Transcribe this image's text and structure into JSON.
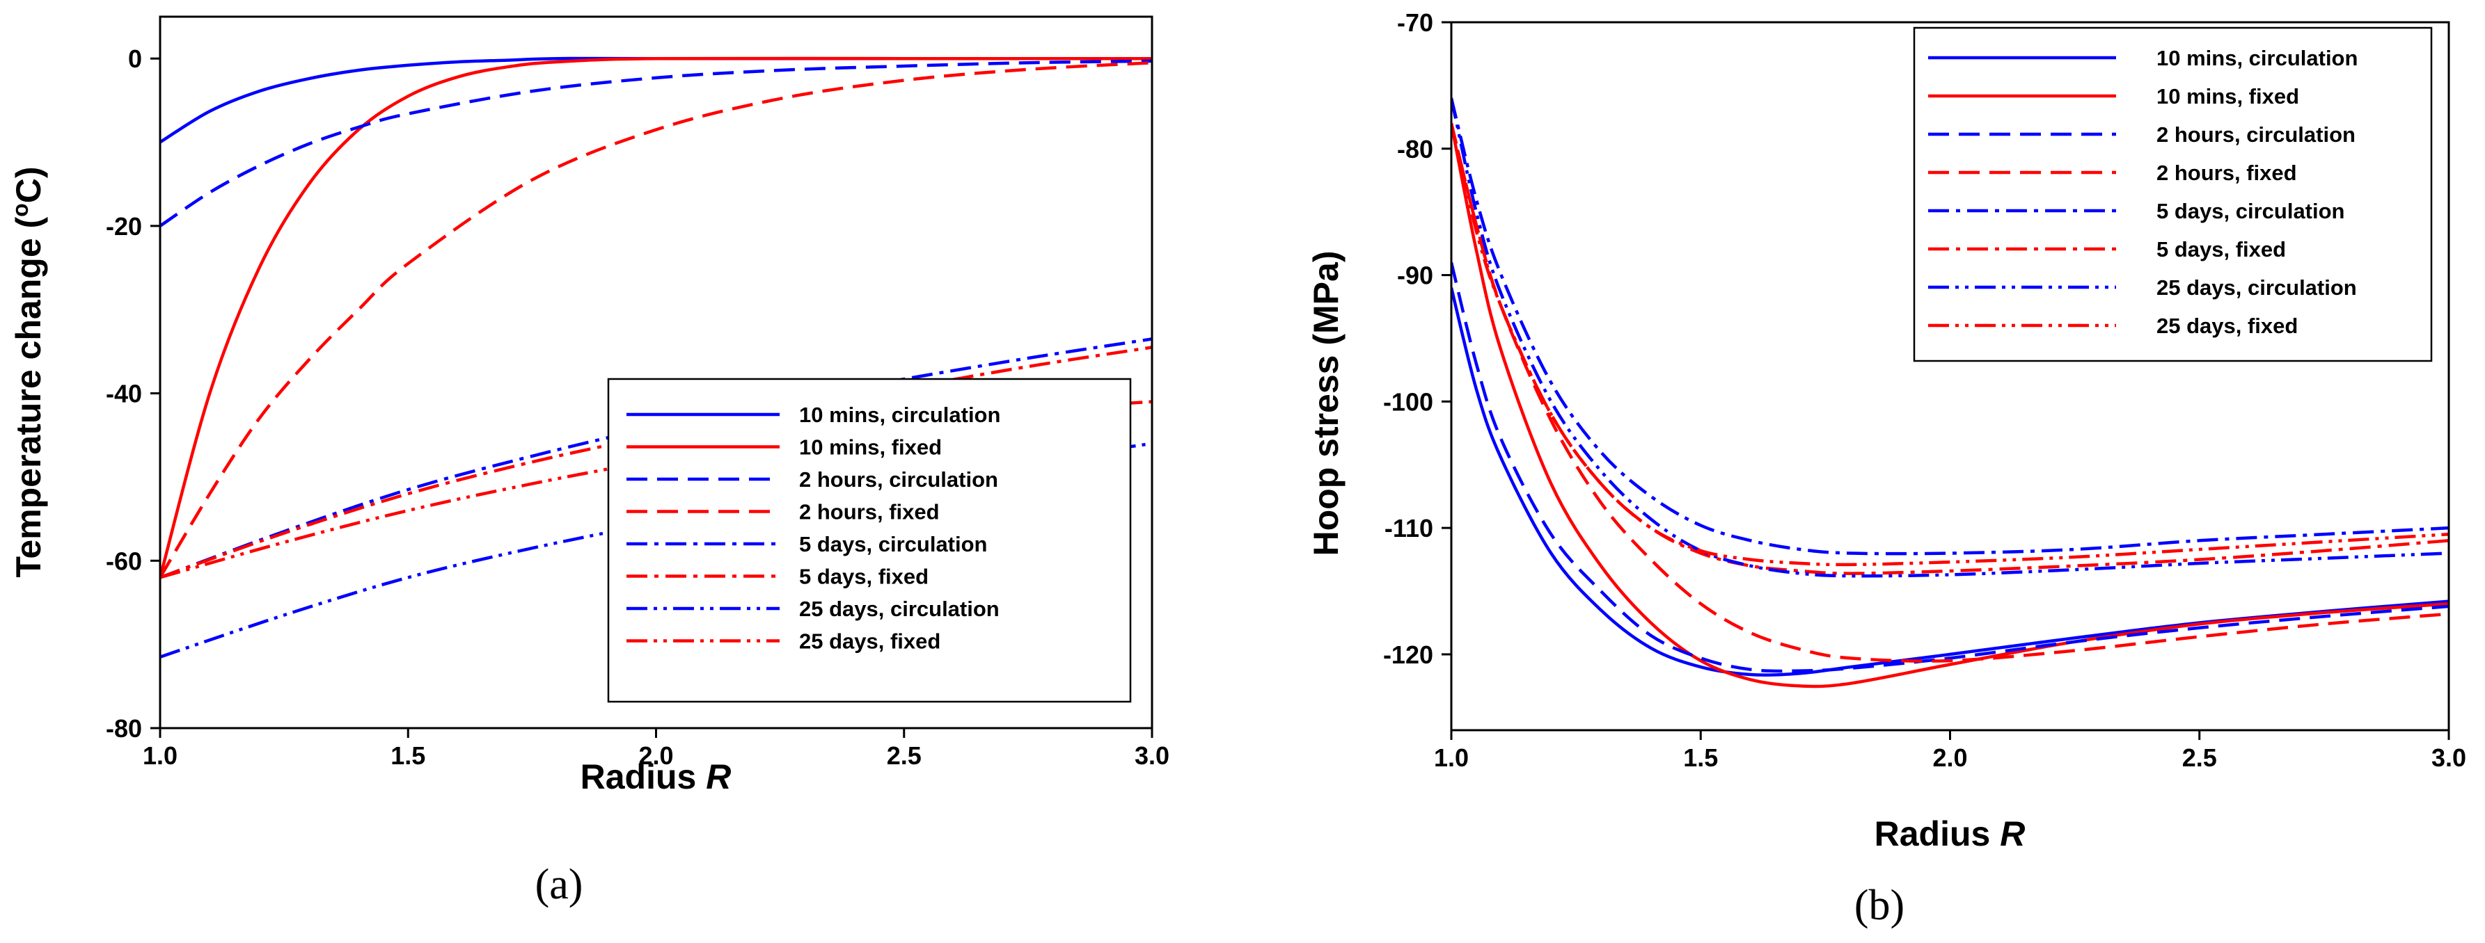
{
  "chart_data": [
    {
      "type": "line",
      "panel_label": "(a)",
      "xlabel": "Radius",
      "xlabel_italic": "R",
      "ylabel": "Temperature change (",
      "ylabel_sup": "o",
      "ylabel_end": "C)",
      "xlim": [
        1.0,
        3.0
      ],
      "ylim": [
        -80,
        5
      ],
      "xticks": [
        1.0,
        1.5,
        2.0,
        2.5,
        3.0
      ],
      "xtick_labels": [
        "1.0",
        "1.5",
        "2.0",
        "2.5",
        "3.0"
      ],
      "yticks": [
        0,
        -20,
        -40,
        -60,
        -80
      ],
      "ytick_labels": [
        "0",
        "-20",
        "-40",
        "-60",
        "-80"
      ],
      "legend_position": "center-right",
      "series": [
        {
          "name": "10 mins, circulation",
          "color": "#0000ff",
          "style": "solid",
          "x": [
            1.0,
            1.1,
            1.2,
            1.3,
            1.4,
            1.5,
            1.6,
            1.7,
            1.8,
            2.0,
            2.5,
            3.0
          ],
          "y": [
            -10,
            -6.3,
            -3.9,
            -2.4,
            -1.4,
            -0.8,
            -0.4,
            -0.2,
            0,
            0,
            0,
            0
          ]
        },
        {
          "name": "10 mins, fixed",
          "color": "#ff0000",
          "style": "solid",
          "x": [
            1.0,
            1.1,
            1.2,
            1.3,
            1.4,
            1.5,
            1.6,
            1.7,
            1.8,
            2.0,
            2.5,
            3.0
          ],
          "y": [
            -62,
            -40,
            -25,
            -15,
            -8.5,
            -4.5,
            -2.2,
            -1.0,
            -0.4,
            0,
            0,
            0
          ]
        },
        {
          "name": "2 hours, circulation",
          "color": "#0000ff",
          "style": "dash",
          "x": [
            1.0,
            1.1,
            1.2,
            1.3,
            1.4,
            1.5,
            1.75,
            2.0,
            2.25,
            2.5,
            2.75,
            3.0
          ],
          "y": [
            -20,
            -16,
            -12.8,
            -10.2,
            -8.2,
            -6.6,
            -3.9,
            -2.3,
            -1.4,
            -0.9,
            -0.5,
            -0.3
          ]
        },
        {
          "name": "2 hours, fixed",
          "color": "#ff0000",
          "style": "dash",
          "x": [
            1.0,
            1.1,
            1.2,
            1.3,
            1.4,
            1.5,
            1.75,
            2.0,
            2.25,
            2.5,
            2.75,
            3.0
          ],
          "y": [
            -62,
            -52,
            -43,
            -36,
            -30,
            -24.5,
            -14.5,
            -8.5,
            -4.8,
            -2.6,
            -1.3,
            -0.5
          ]
        },
        {
          "name": "5 days,  circulation",
          "color": "#0000ff",
          "style": "dashdot",
          "x": [
            1.0,
            1.25,
            1.5,
            1.75,
            2.0,
            2.25,
            2.5,
            2.75,
            3.0
          ],
          "y": [
            -62,
            -56.5,
            -51.5,
            -47.5,
            -44,
            -41,
            -38.3,
            -35.8,
            -33.5
          ]
        },
        {
          "name": "5 days,  fixed",
          "color": "#ff0000",
          "style": "dashdot",
          "x": [
            1.0,
            1.25,
            1.5,
            1.75,
            2.0,
            2.25,
            2.5,
            2.75,
            3.0
          ],
          "y": [
            -62,
            -56.7,
            -52,
            -48.2,
            -45,
            -42,
            -39.4,
            -36.8,
            -34.5
          ]
        },
        {
          "name": "25 days, circulation",
          "color": "#0000ff",
          "style": "dashdotdot",
          "x": [
            1.0,
            1.25,
            1.5,
            1.75,
            2.0,
            2.25,
            2.5,
            2.75,
            3.0
          ],
          "y": [
            -71.5,
            -66.5,
            -62,
            -58.5,
            -55.5,
            -52.8,
            -50.3,
            -48.1,
            -46
          ]
        },
        {
          "name": "25 days, fixed",
          "color": "#ff0000",
          "style": "dashdotdot",
          "x": [
            1.0,
            1.25,
            1.5,
            1.75,
            2.0,
            2.25,
            2.5,
            2.75,
            3.0
          ],
          "y": [
            -62,
            -57.8,
            -54,
            -50.8,
            -48,
            -45.5,
            -43.3,
            -42,
            -41
          ]
        }
      ]
    },
    {
      "type": "line",
      "panel_label": "(b)",
      "xlabel": "Radius",
      "xlabel_italic": "R",
      "ylabel": "Hoop stress (MPa)",
      "xlim": [
        1.0,
        3.0
      ],
      "ylim": [
        -126,
        -70
      ],
      "xticks": [
        1.0,
        1.5,
        2.0,
        2.5,
        3.0
      ],
      "xtick_labels": [
        "1.0",
        "1.5",
        "2.0",
        "2.5",
        "3.0"
      ],
      "yticks": [
        -70,
        -80,
        -90,
        -100,
        -110,
        -120
      ],
      "ytick_labels": [
        "-70",
        "-80",
        "-90",
        "-100",
        "-110",
        "-120"
      ],
      "legend_position": "top-right",
      "series": [
        {
          "name": "10 mins, circulation",
          "color": "#0000ff",
          "style": "solid",
          "x": [
            1.0,
            1.05,
            1.1,
            1.2,
            1.3,
            1.4,
            1.5,
            1.6,
            1.7,
            1.8,
            2.0,
            2.25,
            2.5,
            2.75,
            3.0
          ],
          "y": [
            -91,
            -99,
            -104.5,
            -112,
            -116.5,
            -119.5,
            -121,
            -121.6,
            -121.5,
            -121,
            -120,
            -118.7,
            -117.5,
            -116.6,
            -115.8
          ]
        },
        {
          "name": "10 mins, fixed",
          "color": "#ff0000",
          "style": "solid",
          "x": [
            1.0,
            1.05,
            1.1,
            1.2,
            1.3,
            1.4,
            1.5,
            1.6,
            1.7,
            1.8,
            2.0,
            2.25,
            2.5,
            2.75,
            3.0
          ],
          "y": [
            -78,
            -88,
            -96,
            -106.5,
            -113,
            -117.5,
            -120.5,
            -122,
            -122.5,
            -122.3,
            -120.8,
            -119,
            -117.6,
            -116.7,
            -116
          ]
        },
        {
          "name": "2 hours, circulation",
          "color": "#0000ff",
          "style": "dash",
          "x": [
            1.0,
            1.05,
            1.1,
            1.2,
            1.3,
            1.4,
            1.5,
            1.6,
            1.7,
            1.8,
            2.0,
            2.25,
            2.5,
            2.75,
            3.0
          ],
          "y": [
            -89,
            -97,
            -103,
            -110.5,
            -115,
            -118.5,
            -120.3,
            -121.2,
            -121.3,
            -121.1,
            -120.3,
            -119,
            -117.9,
            -117,
            -116.2
          ]
        },
        {
          "name": "2 hours, fixed",
          "color": "#ff0000",
          "style": "dash",
          "x": [
            1.0,
            1.05,
            1.1,
            1.2,
            1.3,
            1.4,
            1.5,
            1.6,
            1.7,
            1.8,
            2.0,
            2.25,
            2.5,
            2.75,
            3.0
          ],
          "y": [
            -78,
            -86,
            -92.5,
            -101.5,
            -108,
            -112.5,
            -116,
            -118.3,
            -119.6,
            -120.3,
            -120.5,
            -119.7,
            -118.6,
            -117.6,
            -116.8
          ]
        },
        {
          "name": "5 days,  circulation",
          "color": "#0000ff",
          "style": "dashdot",
          "x": [
            1.0,
            1.05,
            1.1,
            1.2,
            1.3,
            1.4,
            1.5,
            1.6,
            1.7,
            1.8,
            2.0,
            2.25,
            2.5,
            2.75,
            3.0
          ],
          "y": [
            -76,
            -84,
            -90,
            -98.5,
            -104,
            -107.5,
            -109.8,
            -111,
            -111.7,
            -112,
            -112,
            -111.7,
            -111,
            -110.5,
            -110
          ]
        },
        {
          "name": "5 days,  fixed",
          "color": "#ff0000",
          "style": "dashdot",
          "x": [
            1.0,
            1.05,
            1.1,
            1.2,
            1.3,
            1.4,
            1.5,
            1.6,
            1.7,
            1.8,
            2.0,
            2.25,
            2.5,
            2.75,
            3.0
          ],
          "y": [
            -78,
            -86,
            -92.5,
            -101,
            -106.5,
            -110,
            -112,
            -113,
            -113.4,
            -113.6,
            -113.4,
            -113,
            -112.5,
            -111.8,
            -111
          ]
        },
        {
          "name": "25 days, circulation",
          "color": "#0000ff",
          "style": "dashdotdot",
          "x": [
            1.0,
            1.05,
            1.1,
            1.2,
            1.3,
            1.4,
            1.5,
            1.6,
            1.7,
            1.8,
            2.0,
            2.25,
            2.5,
            2.75,
            3.0
          ],
          "y": [
            -76,
            -85,
            -91.5,
            -100,
            -105.5,
            -109.3,
            -111.8,
            -113,
            -113.6,
            -113.8,
            -113.7,
            -113.3,
            -112.8,
            -112.4,
            -112
          ]
        },
        {
          "name": "25 days, fixed",
          "color": "#ff0000",
          "style": "dashdotdot",
          "x": [
            1.0,
            1.05,
            1.1,
            1.2,
            1.3,
            1.4,
            1.5,
            1.6,
            1.7,
            1.8,
            2.0,
            2.25,
            2.5,
            2.75,
            3.0
          ],
          "y": [
            -78,
            -86.5,
            -92.5,
            -101,
            -106.5,
            -110,
            -111.8,
            -112.5,
            -112.8,
            -112.9,
            -112.7,
            -112.3,
            -111.7,
            -111.1,
            -110.5
          ]
        }
      ]
    }
  ]
}
